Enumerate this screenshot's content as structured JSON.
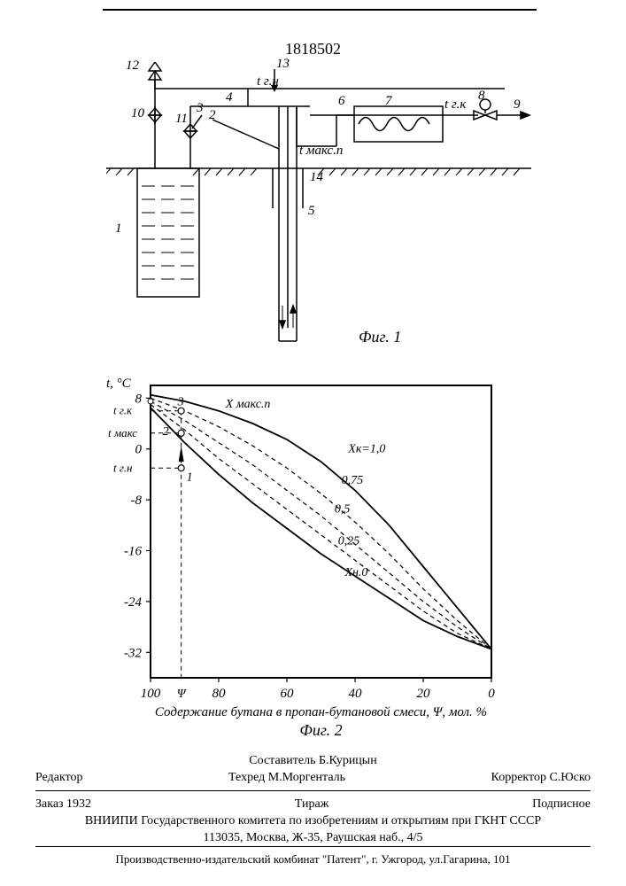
{
  "document": {
    "number": "1818502"
  },
  "fig1": {
    "caption": "Фиг. 1",
    "schematic_numbers": [
      "1",
      "2",
      "3",
      "4",
      "5",
      "6",
      "7",
      "8",
      "9",
      "10",
      "11",
      "12",
      "13",
      "14"
    ],
    "temp_labels": {
      "tgn": "t г.н",
      "tgk": "t г.к",
      "tmaksp": "t макс.п"
    },
    "line_color": "#000000",
    "line_width": 1.5,
    "background": "#ffffff"
  },
  "fig2": {
    "caption": "Фиг. 2",
    "type": "line",
    "xlabel": "Содержание бутана в пропан-бутановой смеси, Ψ, мол. %",
    "ylabel": "t, °C",
    "xlim": [
      100,
      0
    ],
    "ylim": [
      -36,
      10
    ],
    "xticks": [
      100,
      80,
      60,
      40,
      20,
      0
    ],
    "yticks": [
      8,
      0,
      -8,
      -16,
      -24,
      -32
    ],
    "ytick_labels_special": {
      "tgk": "t г.к",
      "tmaks": "t макс",
      "tgn": "t г.н"
    },
    "series_labels": {
      "xk10": "Xк=1,0",
      "x075": "0,75",
      "x050": "0,5",
      "x025": "0,25",
      "xn0": "Xн.0"
    },
    "annotation_labels": {
      "xmaksp": "X макс.п",
      "pt1": "1",
      "pt2": "2",
      "pt3": "3",
      "psi": "Ψ"
    },
    "series": [
      {
        "name": "xk1.0",
        "dash": "none",
        "points_x": [
          100,
          90,
          80,
          70,
          60,
          50,
          40,
          30,
          20,
          10,
          0
        ],
        "points_t": [
          8.5,
          7.5,
          6.0,
          4.0,
          1.5,
          -2.0,
          -6.5,
          -12.0,
          -18.5,
          -25.0,
          -31.5
        ]
      },
      {
        "name": "x0.75",
        "dash": "5,4",
        "points_x": [
          100,
          90,
          80,
          70,
          60,
          50,
          40,
          30,
          20,
          10,
          0
        ],
        "points_t": [
          8.0,
          6.0,
          3.5,
          0.5,
          -3.0,
          -7.0,
          -11.5,
          -16.5,
          -22.0,
          -27.0,
          -31.5
        ]
      },
      {
        "name": "x0.5",
        "dash": "5,4",
        "points_x": [
          100,
          90,
          80,
          70,
          60,
          50,
          40,
          30,
          20,
          10,
          0
        ],
        "points_t": [
          7.5,
          4.5,
          1.0,
          -2.5,
          -6.5,
          -10.5,
          -15.0,
          -19.5,
          -24.0,
          -28.0,
          -31.5
        ]
      },
      {
        "name": "x0.25",
        "dash": "5,4",
        "points_x": [
          100,
          90,
          80,
          70,
          60,
          50,
          40,
          30,
          20,
          10,
          0
        ],
        "points_t": [
          7.0,
          3.0,
          -1.5,
          -5.5,
          -9.5,
          -13.5,
          -17.5,
          -21.5,
          -25.5,
          -29.0,
          -31.5
        ]
      },
      {
        "name": "xn0",
        "dash": "none",
        "points_x": [
          100,
          90,
          80,
          70,
          60,
          50,
          40,
          30,
          20,
          10,
          0
        ],
        "points_t": [
          6.5,
          1.0,
          -4.0,
          -8.5,
          -12.5,
          -16.5,
          -20.0,
          -23.5,
          -27.0,
          -29.5,
          -31.5
        ]
      }
    ],
    "aux": {
      "psi_x": 91,
      "t_gn": -3.0,
      "t_maks": 2.5,
      "t_gk": 6.0
    },
    "colors": {
      "axis": "#000000",
      "curve": "#000000",
      "grid": "#000000"
    },
    "line_width": 1.8,
    "dash_width": 1.2,
    "background": "#ffffff",
    "frame_width": 2
  },
  "colophon": {
    "compiler": "Составитель  Б.Курицын",
    "editor_label": "Редактор",
    "techred": "Техред М.Моргенталь",
    "corrector": "Корректор  С.Юско",
    "order": "Заказ 1932",
    "tirazh": "Тираж",
    "podpisnoe": "Подписное",
    "org_line1": "ВНИИПИ Государственного комитета по изобретениям и открытиям при ГКНТ СССР",
    "org_line2": "113035, Москва, Ж-35, Раушская наб., 4/5"
  },
  "imprint": {
    "line": "Производственно-издательский комбинат \"Патент\", г. Ужгород, ул.Гагарина, 101"
  }
}
